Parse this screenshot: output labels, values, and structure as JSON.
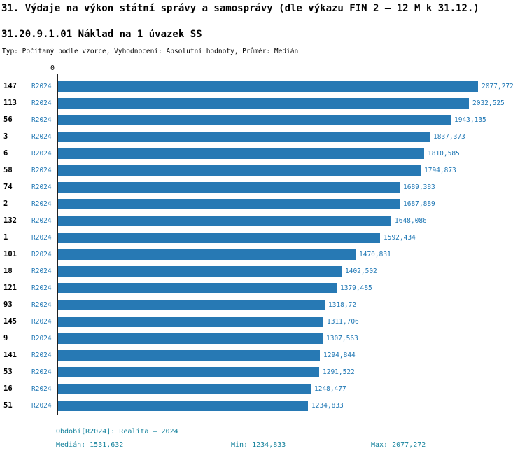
{
  "header": {
    "title": "31. Výdaje na výkon státní správy a samosprávy (dle výkazu FIN 2 – 12 M k 31.12.)",
    "subtitle": "31.20.9.1.01 Náklad na 1 úvazek SS",
    "type_line": "Typ: Počítaný podle vzorce, Vyhodnocení: Absolutní hodnoty, Průměr: Medián"
  },
  "chart_data": {
    "type": "bar",
    "orientation": "horizontal",
    "axis_zero_label": "0",
    "period_label": "R2024",
    "xlim": [
      0,
      2077.272
    ],
    "median_value": 1531.632,
    "grid": false,
    "rows": [
      {
        "label": "147",
        "period": "R2024",
        "value": 2077.272,
        "value_display": "2077,272"
      },
      {
        "label": "113",
        "period": "R2024",
        "value": 2032.525,
        "value_display": "2032,525"
      },
      {
        "label": "56",
        "period": "R2024",
        "value": 1943.135,
        "value_display": "1943,135"
      },
      {
        "label": "3",
        "period": "R2024",
        "value": 1837.373,
        "value_display": "1837,373"
      },
      {
        "label": "6",
        "period": "R2024",
        "value": 1810.585,
        "value_display": "1810,585"
      },
      {
        "label": "58",
        "period": "R2024",
        "value": 1794.873,
        "value_display": "1794,873"
      },
      {
        "label": "74",
        "period": "R2024",
        "value": 1689.383,
        "value_display": "1689,383"
      },
      {
        "label": "2",
        "period": "R2024",
        "value": 1687.889,
        "value_display": "1687,889"
      },
      {
        "label": "132",
        "period": "R2024",
        "value": 1648.086,
        "value_display": "1648,086"
      },
      {
        "label": "1",
        "period": "R2024",
        "value": 1592.434,
        "value_display": "1592,434"
      },
      {
        "label": "101",
        "period": "R2024",
        "value": 1470.831,
        "value_display": "1470,831"
      },
      {
        "label": "18",
        "period": "R2024",
        "value": 1402.502,
        "value_display": "1402,502"
      },
      {
        "label": "121",
        "period": "R2024",
        "value": 1379.485,
        "value_display": "1379,485"
      },
      {
        "label": "93",
        "period": "R2024",
        "value": 1318.72,
        "value_display": "1318,72"
      },
      {
        "label": "145",
        "period": "R2024",
        "value": 1311.706,
        "value_display": "1311,706"
      },
      {
        "label": "9",
        "period": "R2024",
        "value": 1307.563,
        "value_display": "1307,563"
      },
      {
        "label": "141",
        "period": "R2024",
        "value": 1294.844,
        "value_display": "1294,844"
      },
      {
        "label": "53",
        "period": "R2024",
        "value": 1291.522,
        "value_display": "1291,522"
      },
      {
        "label": "16",
        "period": "R2024",
        "value": 1248.477,
        "value_display": "1248,477"
      },
      {
        "label": "51",
        "period": "R2024",
        "value": 1234.833,
        "value_display": "1234,833"
      }
    ]
  },
  "footer": {
    "period_line": "Období[R2024]: Realita – 2024",
    "median_label": "Medián: 1531,632",
    "min_label": "Min: 1234,833",
    "max_label": "Max: 2077,272"
  },
  "colors": {
    "bar": "#2779b4",
    "value_text": "#1f77b4",
    "footer_text": "#17839d",
    "median_line": "#4a90c4"
  }
}
